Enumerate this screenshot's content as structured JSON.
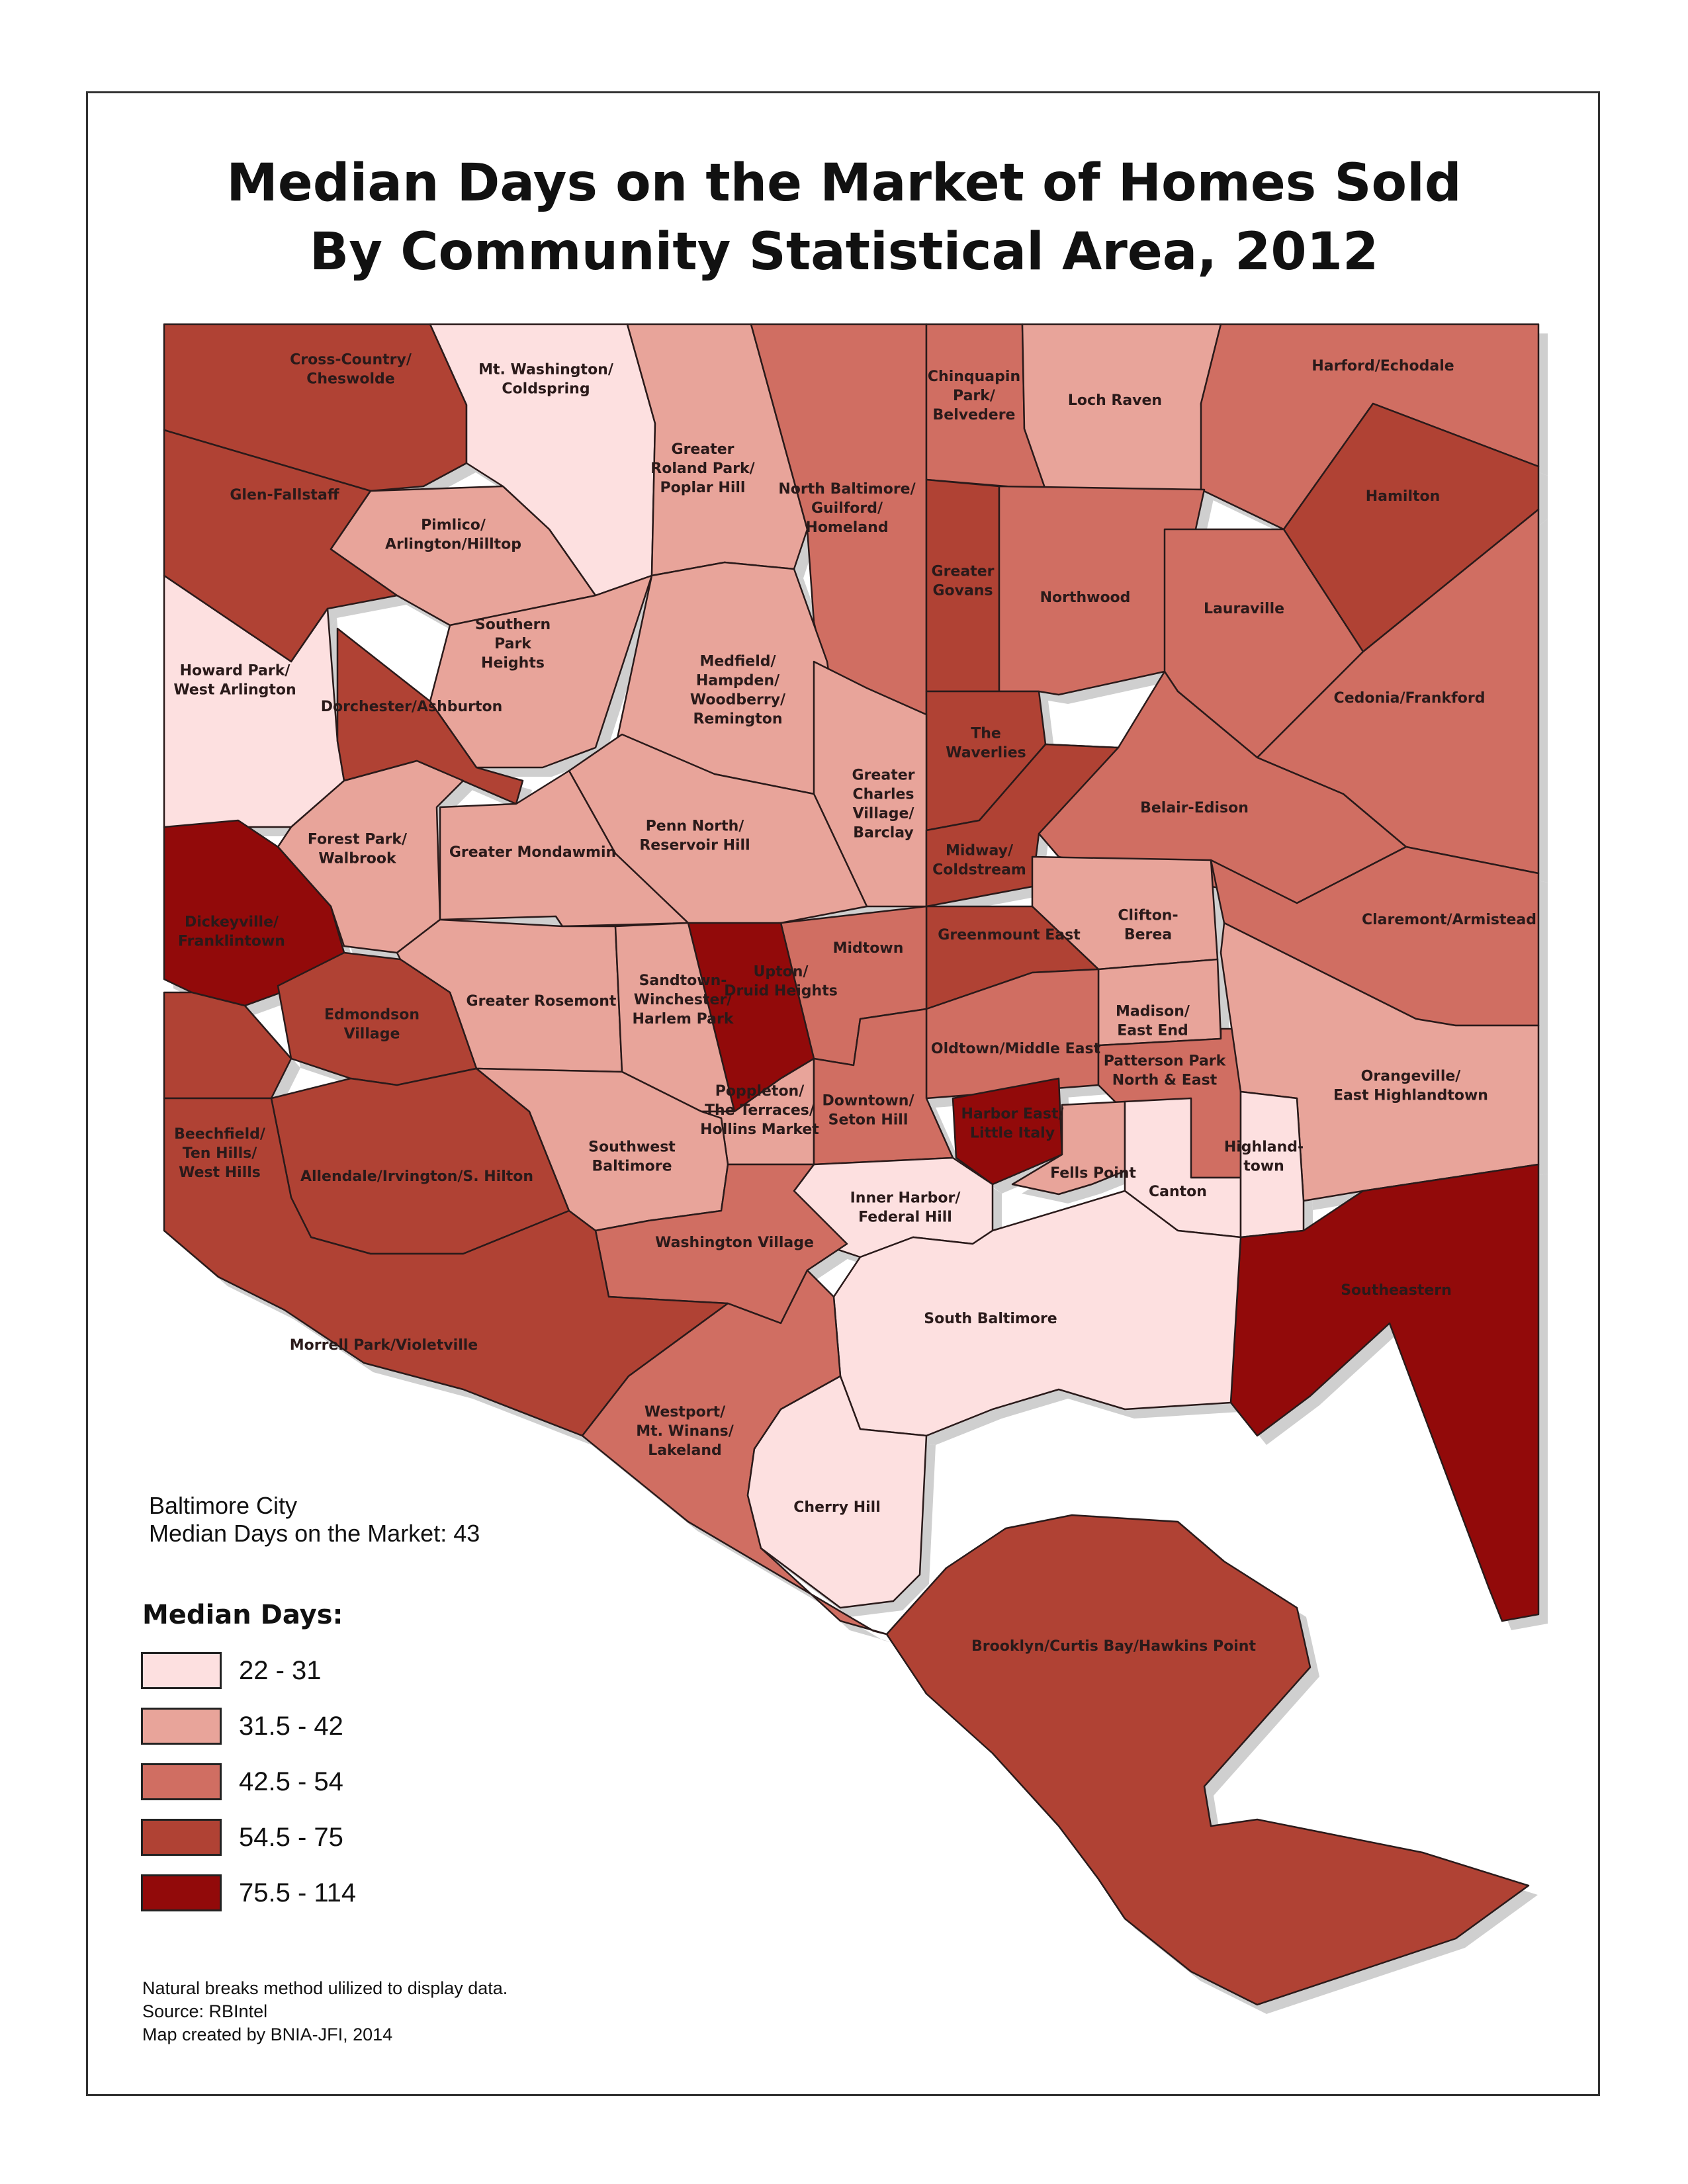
{
  "title_line1": "Median Days on the Market of Homes Sold",
  "title_line2": "By Community Statistical Area, 2012",
  "info": {
    "line1": "Baltimore City",
    "line2": "Median Days on the Market: 43"
  },
  "legend": {
    "title": "Median Days:",
    "classes": [
      {
        "label": "22 - 31",
        "color": "#fde0e0"
      },
      {
        "label": "31.5 - 42",
        "color": "#e8a49a"
      },
      {
        "label": "42.5 - 54",
        "color": "#d06e62"
      },
      {
        "label": "54.5 - 75",
        "color": "#b04234"
      },
      {
        "label": "75.5 - 114",
        "color": "#920a0a"
      }
    ]
  },
  "notes": {
    "line1": "Natural breaks method ulilized to display data.",
    "line2": "Source: RBIntel",
    "line3": "Map created by BNIA-JFI, 2014"
  },
  "areas": [
    {
      "id": "cross-country",
      "lines": [
        "Cross-Country/",
        "Cheswolde"
      ],
      "cls": 3
    },
    {
      "id": "mt-washington",
      "lines": [
        "Mt. Washington/",
        "Coldspring"
      ],
      "cls": 0
    },
    {
      "id": "greater-roland-park",
      "lines": [
        "Greater",
        "Roland Park/",
        "Poplar Hill"
      ],
      "cls": 1
    },
    {
      "id": "north-baltimore",
      "lines": [
        "North Baltimore/",
        "Guilford/",
        "Homeland"
      ],
      "cls": 2
    },
    {
      "id": "chinquapin-park",
      "lines": [
        "Chinquapin",
        "Park/",
        "Belvedere"
      ],
      "cls": 2
    },
    {
      "id": "loch-raven",
      "lines": [
        "Loch Raven"
      ],
      "cls": 1
    },
    {
      "id": "harford-echodale",
      "lines": [
        "Harford/Echodale"
      ],
      "cls": 2
    },
    {
      "id": "glen-fallstaff",
      "lines": [
        "Glen-Fallstaff"
      ],
      "cls": 3
    },
    {
      "id": "pimlico",
      "lines": [
        "Pimlico/",
        "Arlington/Hilltop"
      ],
      "cls": 1
    },
    {
      "id": "hamilton",
      "lines": [
        "Hamilton"
      ],
      "cls": 3
    },
    {
      "id": "greater-govans",
      "lines": [
        "Greater",
        "Govans"
      ],
      "cls": 3
    },
    {
      "id": "northwood",
      "lines": [
        "Northwood"
      ],
      "cls": 2
    },
    {
      "id": "lauraville",
      "lines": [
        "Lauraville"
      ],
      "cls": 2
    },
    {
      "id": "southern-park-heights",
      "lines": [
        "Southern",
        "Park",
        "Heights"
      ],
      "cls": 1
    },
    {
      "id": "howard-park",
      "lines": [
        "Howard Park/",
        "West Arlington"
      ],
      "cls": 0
    },
    {
      "id": "medfield",
      "lines": [
        "Medfield/",
        "Hampden/",
        "Woodberry/",
        "Remington"
      ],
      "cls": 1
    },
    {
      "id": "cedonia",
      "lines": [
        "Cedonia/Frankford"
      ],
      "cls": 2
    },
    {
      "id": "dorchester",
      "lines": [
        "Dorchester/Ashburton"
      ],
      "cls": 3
    },
    {
      "id": "the-waverlies",
      "lines": [
        "The",
        "Waverlies"
      ],
      "cls": 3
    },
    {
      "id": "greater-charles-village",
      "lines": [
        "Greater",
        "Charles",
        "Village/",
        "Barclay"
      ],
      "cls": 1
    },
    {
      "id": "belair-edison",
      "lines": [
        "Belair-Edison"
      ],
      "cls": 2
    },
    {
      "id": "forest-park",
      "lines": [
        "Forest Park/",
        "Walbrook"
      ],
      "cls": 1
    },
    {
      "id": "penn-north",
      "lines": [
        "Penn North/",
        "Reservoir Hill"
      ],
      "cls": 1
    },
    {
      "id": "greater-mondawmin",
      "lines": [
        "Greater Mondawmin"
      ],
      "cls": 1
    },
    {
      "id": "midway",
      "lines": [
        "Midway/",
        "Coldstream"
      ],
      "cls": 3
    },
    {
      "id": "clifton-berea",
      "lines": [
        "Clifton-",
        "Berea"
      ],
      "cls": 1
    },
    {
      "id": "claremont",
      "lines": [
        "Claremont/Armistead"
      ],
      "cls": 2
    },
    {
      "id": "dickeyville",
      "lines": [
        "Dickeyville/",
        "Franklintown"
      ],
      "cls": 4
    },
    {
      "id": "greenmount-east",
      "lines": [
        "Greenmount East"
      ],
      "cls": 3
    },
    {
      "id": "midtown",
      "lines": [
        "Midtown"
      ],
      "cls": 2
    },
    {
      "id": "upton",
      "lines": [
        "Upton/",
        "Druid Heights"
      ],
      "cls": 4
    },
    {
      "id": "greater-rosemont",
      "lines": [
        "Greater Rosemont"
      ],
      "cls": 1
    },
    {
      "id": "sandtown",
      "lines": [
        "Sandtown-",
        "Winchester/",
        "Harlem Park"
      ],
      "cls": 1
    },
    {
      "id": "edmondson-village",
      "lines": [
        "Edmondson",
        "Village"
      ],
      "cls": 3
    },
    {
      "id": "madison-east-end",
      "lines": [
        "Madison/",
        "East End"
      ],
      "cls": 1
    },
    {
      "id": "oldtown",
      "lines": [
        "Oldtown/Middle East"
      ],
      "cls": 2
    },
    {
      "id": "patterson-park",
      "lines": [
        "Patterson Park",
        "North & East"
      ],
      "cls": 2
    },
    {
      "id": "orangeville",
      "lines": [
        "Orangeville/",
        "East Highlandtown"
      ],
      "cls": 1
    },
    {
      "id": "poppleton",
      "lines": [
        "Poppleton/",
        "The Terraces/",
        "Hollins Market"
      ],
      "cls": 1
    },
    {
      "id": "downtown",
      "lines": [
        "Downtown/",
        "Seton Hill"
      ],
      "cls": 2
    },
    {
      "id": "harbor-east",
      "lines": [
        "Harbor East/",
        "Little Italy"
      ],
      "cls": 4
    },
    {
      "id": "beechfield",
      "lines": [
        "Beechfield/",
        "Ten Hills/",
        "West Hills"
      ],
      "cls": 3
    },
    {
      "id": "allendale",
      "lines": [
        "Allendale/Irvington/S. Hilton"
      ],
      "cls": 3
    },
    {
      "id": "southwest-baltimore",
      "lines": [
        "Southwest",
        "Baltimore"
      ],
      "cls": 1
    },
    {
      "id": "fells-point",
      "lines": [
        "Fells Point"
      ],
      "cls": 1
    },
    {
      "id": "canton",
      "lines": [
        "Canton"
      ],
      "cls": 0
    },
    {
      "id": "highlandtown",
      "lines": [
        "Highland-",
        "town"
      ],
      "cls": 0
    },
    {
      "id": "inner-harbor",
      "lines": [
        "Inner Harbor/",
        "Federal Hill"
      ],
      "cls": 0
    },
    {
      "id": "washington-village",
      "lines": [
        "Washington Village"
      ],
      "cls": 2
    },
    {
      "id": "southeastern",
      "lines": [
        "Southeastern"
      ],
      "cls": 4
    },
    {
      "id": "south-baltimore",
      "lines": [
        "South Baltimore"
      ],
      "cls": 0
    },
    {
      "id": "morrell-park",
      "lines": [
        "Morrell Park/Violetville"
      ],
      "cls": 3
    },
    {
      "id": "westport",
      "lines": [
        "Westport/",
        "Mt. Winans/",
        "Lakeland"
      ],
      "cls": 2
    },
    {
      "id": "cherry-hill",
      "lines": [
        "Cherry Hill"
      ],
      "cls": 0
    },
    {
      "id": "brooklyn",
      "lines": [
        "Brooklyn/Curtis Bay/Hawkins Point"
      ],
      "cls": 3
    }
  ]
}
